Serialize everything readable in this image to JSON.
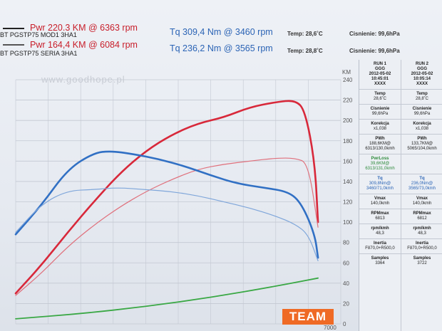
{
  "header": {
    "row1": {
      "run": "BT PGSTP75 MOD1 3HA1",
      "pwr": "Pwr  220.3 KM @ 6363 rpm",
      "tq": "Tq 309,4 Nm @ 3460 rpm",
      "temp": "Temp: 28,6˚C",
      "pressure": "Cisnienie: 99,6hPa"
    },
    "row2": {
      "run": "BT PGSTP75 SERIA 3HA1",
      "pwr": "Pwr  164,4 KM @ 6084 rpm",
      "tq": "Tq 236,2 Nm @ 3565 rpm",
      "temp": "Temp: 28,8˚C",
      "pressure": "Cisnienie: 99,6hPa"
    }
  },
  "watermark": "www.goodhope.pl",
  "brand": "TEAM",
  "colors": {
    "power_tuned": "#d8283a",
    "power_stock": "#e0707c",
    "torque_tuned": "#3170c4",
    "torque_stock": "#7fa6da",
    "loss": "#3aa845",
    "grid": "#c3c8d2"
  },
  "chart_data": {
    "type": "line",
    "xlabel": "",
    "ylabel": "KM",
    "x_tick_visible": "7000",
    "xlim": [
      2000,
      7000
    ],
    "ylim": [
      0,
      240
    ],
    "y_ticks": [
      0,
      20,
      40,
      60,
      80,
      100,
      120,
      140,
      160,
      180,
      200,
      220,
      240
    ],
    "grid": true,
    "series": [
      {
        "name": "Pwr MOD1",
        "x": [
          2000,
          2400,
          2800,
          3200,
          3600,
          4000,
          4400,
          4800,
          5200,
          5600,
          6000,
          6300,
          6450,
          6600,
          6650
        ],
        "y": [
          30,
          58,
          90,
          120,
          148,
          170,
          186,
          197,
          203,
          213,
          218,
          220,
          210,
          160,
          100
        ]
      },
      {
        "name": "Pwr SERIA",
        "x": [
          2000,
          2400,
          2800,
          3200,
          3600,
          4000,
          4400,
          4800,
          5200,
          5600,
          6000,
          6300,
          6500,
          6650
        ],
        "y": [
          28,
          50,
          76,
          97,
          115,
          130,
          142,
          152,
          157,
          160,
          163,
          163,
          158,
          95
        ]
      },
      {
        "name": "Tq MOD1",
        "x": [
          2000,
          2400,
          2800,
          3200,
          3460,
          3800,
          4200,
          4600,
          5000,
          5400,
          5800,
          6200,
          6400,
          6600,
          6650
        ],
        "y": [
          88,
          117,
          152,
          168,
          170,
          167,
          162,
          155,
          146,
          138,
          134,
          130,
          118,
          88,
          65
        ]
      },
      {
        "name": "Tq SERIA",
        "x": [
          2000,
          2400,
          2800,
          3200,
          3565,
          4000,
          4400,
          4800,
          5200,
          5600,
          6000,
          6300,
          6500,
          6650
        ],
        "y": [
          90,
          118,
          131,
          132,
          134,
          132,
          130,
          126,
          120,
          114,
          106,
          98,
          88,
          62
        ]
      },
      {
        "name": "Loss",
        "x": [
          2000,
          3000,
          4000,
          5000,
          6000,
          6650
        ],
        "y": [
          5,
          10,
          17,
          26,
          37,
          45
        ]
      }
    ]
  },
  "panel": {
    "columns": [
      {
        "head": [
          "RUN 1",
          "GGG",
          "2012-05-02",
          "10:45:01",
          "XXXX"
        ],
        "temp_label": "Temp",
        "temp": "28,6˚C",
        "pres_label": "Cisnienie",
        "pres": "99,6hPa",
        "korekcja_label": "Korekcja",
        "korekcja": "x1,038",
        "pwh_label": "PWh",
        "pwh": "188,6KM@",
        "pwh2": "6313/130,0kmh",
        "pwrloss_label": "PwrLoss",
        "pwrloss": "39,6KM@",
        "pwrloss2": "6313/131,0kmh",
        "tq_label": "Tq",
        "tq": "309,8Nm@",
        "tq2": "3460/71,0kmh",
        "vmax_label": "Vmax",
        "vmax": "140,0kmh",
        "rpm_label": "RPMmax",
        "rpm": "6813",
        "rpmk_label": "rpm/kmh",
        "rpmk": "48,3",
        "inertia_label": "Inertia",
        "inertia": "F870,0+R500,0",
        "samples_label": "Samples",
        "samples": "3364"
      },
      {
        "head": [
          "RUN 2",
          "GGG",
          "2012-05-02",
          "10:05:14",
          "XXXX"
        ],
        "temp_label": "Temp",
        "temp": "28,8˚C",
        "pres_label": "Cisnienie",
        "pres": "99,6hPa",
        "korekcja_label": "Korekcja",
        "korekcja": "x1,038",
        "pwh_label": "PWh",
        "pwh": "133,7KM@",
        "pwh2": "5065/104,0kmh",
        "pwrloss_label": "",
        "pwrloss": "",
        "pwrloss2": "",
        "tq_label": "Tq",
        "tq": "236,0Nm@",
        "tq2": "3565/73,0kmh",
        "vmax_label": "Vmax",
        "vmax": "140,0kmh",
        "rpm_label": "RPMmax",
        "rpm": "6812",
        "rpmk_label": "rpm/kmh",
        "rpmk": "48,3",
        "inertia_label": "Inertia",
        "inertia": "F870,0+R500,0",
        "samples_label": "Samples",
        "samples": "3722"
      }
    ]
  }
}
